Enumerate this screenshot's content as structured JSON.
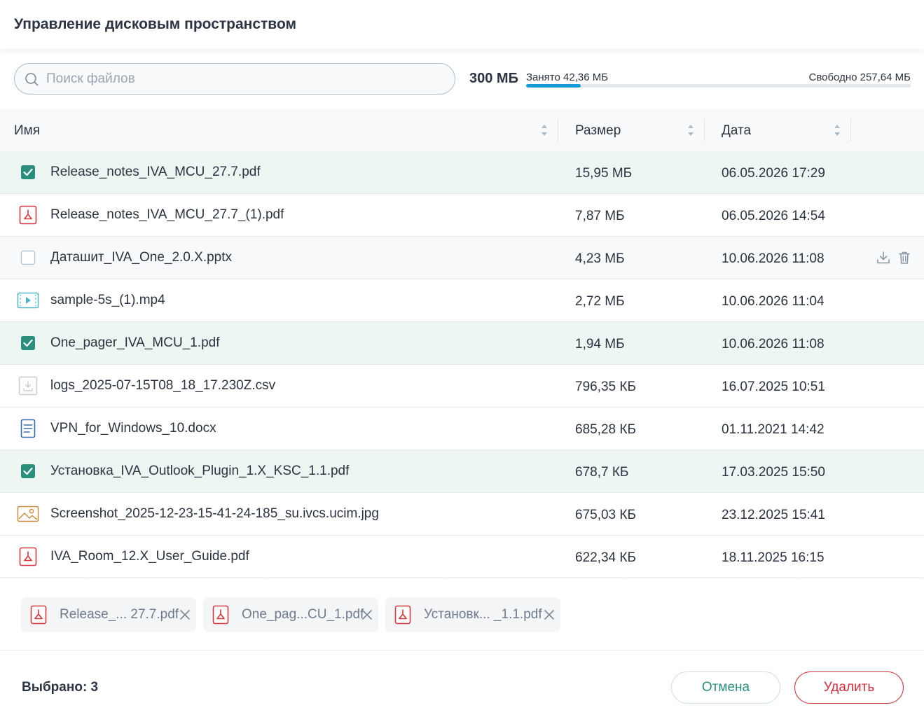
{
  "header": {
    "title": "Управление дисковым пространством"
  },
  "search": {
    "placeholder": "Поиск файлов",
    "value": ""
  },
  "quota": {
    "total_label": "300 МБ",
    "used_label": "Занято 42,36 МБ",
    "free_label": "Свободно 257,64 МБ",
    "used_fraction": 0.1412,
    "bar_color": "#1a9bd8"
  },
  "table": {
    "columns": {
      "name": "Имя",
      "size": "Размер",
      "date": "Дата"
    },
    "rows": [
      {
        "name": "Release_notes_IVA_MCU_27.7.pdf",
        "size": "15,95 МБ",
        "date": "06.05.2026 17:29",
        "icon": "checkbox-checked-icon",
        "state": "selected"
      },
      {
        "name": "Release_notes_IVA_MCU_27.7_(1).pdf",
        "size": "7,87 МБ",
        "date": "06.05.2026 14:54",
        "icon": "pdf-icon",
        "state": "normal"
      },
      {
        "name": "Даташит_IVA_One_2.0.X.pptx",
        "size": "4,23 МБ",
        "date": "10.06.2026 11:08",
        "icon": "checkbox-empty-icon",
        "state": "hovered"
      },
      {
        "name": "sample-5s_(1).mp4",
        "size": "2,72 МБ",
        "date": "10.06.2026 11:04",
        "icon": "video-icon",
        "state": "normal"
      },
      {
        "name": "One_pager_IVA_MCU_1.pdf",
        "size": "1,94 МБ",
        "date": "10.06.2026 11:08",
        "icon": "checkbox-checked-icon",
        "state": "selected"
      },
      {
        "name": "logs_2025-07-15T08_18_17.230Z.csv",
        "size": "796,35 КБ",
        "date": "16.07.2025 10:51",
        "icon": "generic-file-icon",
        "state": "normal"
      },
      {
        "name": "VPN_for_Windows_10.docx",
        "size": "685,28 КБ",
        "date": "01.11.2021 14:42",
        "icon": "document-icon",
        "state": "normal"
      },
      {
        "name": "Установка_IVA_Outlook_Plugin_1.X_KSC_1.1.pdf",
        "size": "678,7 КБ",
        "date": "17.03.2025 15:50",
        "icon": "checkbox-checked-icon",
        "state": "selected"
      },
      {
        "name": "Screenshot_2025-12-23-15-41-24-185_su.ivcs.ucim.jpg",
        "size": "675,03 КБ",
        "date": "23.12.2025 15:41",
        "icon": "image-icon",
        "state": "normal"
      },
      {
        "name": "IVA_Room_12.X_User_Guide.pdf",
        "size": "622,34 КБ",
        "date": "18.11.2025 16:15",
        "icon": "pdf-icon",
        "state": "normal"
      }
    ]
  },
  "chips": [
    {
      "label": "Release_...  27.7.pdf"
    },
    {
      "label": "One_pag...CU_1.pdf"
    },
    {
      "label": "Установк... _1.1.pdf"
    }
  ],
  "footer": {
    "selected_label": "Выбрано: 3",
    "cancel_label": "Отмена",
    "delete_label": "Удалить"
  },
  "colors": {
    "accent_green": "#2a8e7d",
    "danger_red": "#d0313a",
    "selected_row_bg": "#eef6f4"
  }
}
